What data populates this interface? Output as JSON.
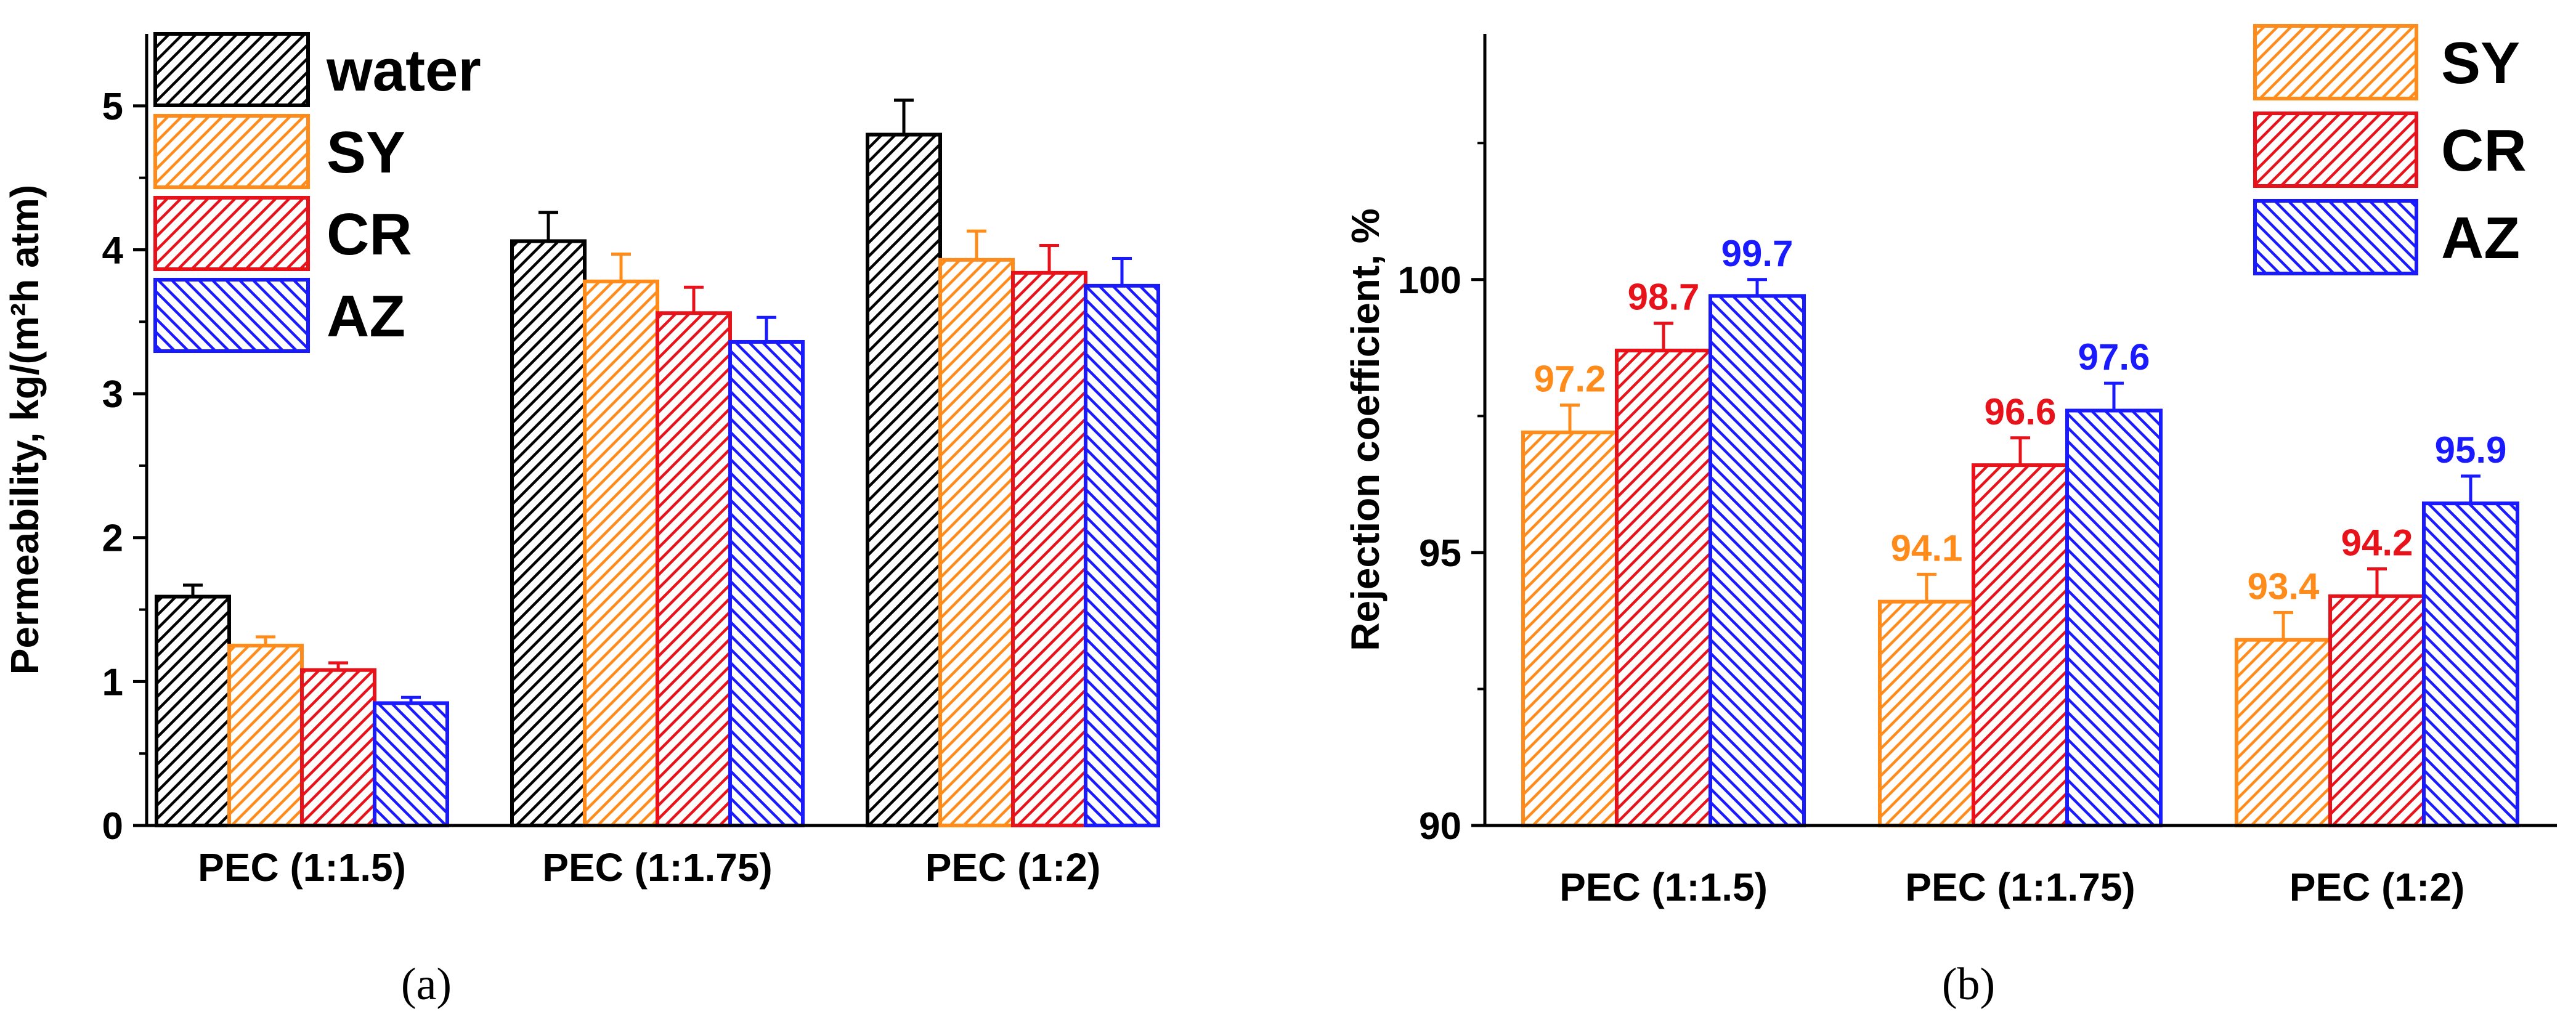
{
  "chart_data": [
    {
      "panel_label": "(a)",
      "type": "bar",
      "ylabel": "Permeability, kg/(m²h atm)",
      "ylim": [
        0,
        5.5
      ],
      "yticks": [
        "0",
        "1",
        "2",
        "3",
        "4",
        "5"
      ],
      "categories": [
        "PEC (1:1.5)",
        "PEC (1:1.75)",
        "PEC (1:2)"
      ],
      "legend_position": "top-left",
      "series": [
        {
          "name": "water",
          "color": "#000000",
          "values": [
            1.59,
            4.06,
            4.8
          ],
          "errors": [
            0.08,
            0.2,
            0.24
          ]
        },
        {
          "name": "SY",
          "color": "#ff8c1a",
          "values": [
            1.25,
            3.78,
            3.93
          ],
          "errors": [
            0.06,
            0.19,
            0.2
          ]
        },
        {
          "name": "CR",
          "color": "#e8121a",
          "values": [
            1.08,
            3.56,
            3.84
          ],
          "errors": [
            0.05,
            0.18,
            0.19
          ]
        },
        {
          "name": "AZ",
          "color": "#1a1aff",
          "values": [
            0.85,
            3.36,
            3.75
          ],
          "errors": [
            0.04,
            0.17,
            0.19
          ]
        }
      ]
    },
    {
      "panel_label": "(b)",
      "type": "bar",
      "ylabel": "Rejection coefficient, %",
      "ylim": [
        90,
        104.5
      ],
      "yticks": [
        "90",
        "95",
        "100"
      ],
      "categories": [
        "PEC (1:1.5)",
        "PEC (1:1.75)",
        "PEC (1:2)"
      ],
      "legend_position": "top-right",
      "series": [
        {
          "name": "SY",
          "color": "#ff8c1a",
          "values": [
            97.2,
            94.1,
            93.4
          ],
          "errors": [
            0.5,
            0.5,
            0.5
          ],
          "labels": [
            "97.2",
            "94.1",
            "93.4"
          ]
        },
        {
          "name": "CR",
          "color": "#e8121a",
          "values": [
            98.7,
            96.6,
            94.2
          ],
          "errors": [
            0.5,
            0.5,
            0.5
          ],
          "labels": [
            "98.7",
            "96.6",
            "94.2"
          ]
        },
        {
          "name": "AZ",
          "color": "#1a1aff",
          "values": [
            99.7,
            97.6,
            95.9
          ],
          "errors": [
            0.3,
            0.5,
            0.5
          ],
          "labels": [
            "99.7",
            "97.6",
            "95.9"
          ]
        }
      ]
    }
  ]
}
